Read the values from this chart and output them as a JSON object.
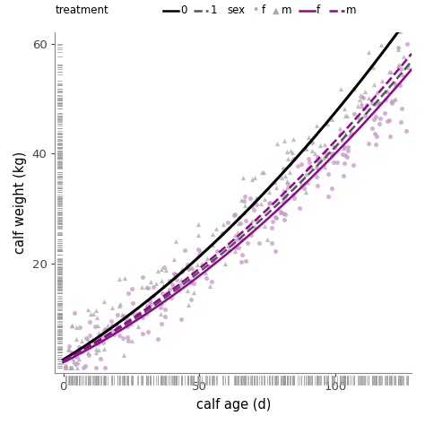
{
  "xlabel": "calf age (d)",
  "ylabel": "calf weight (kg)",
  "xlim": [
    -3,
    128
  ],
  "ylim": [
    0,
    62
  ],
  "yticks": [
    20,
    40,
    60
  ],
  "xticks": [
    0,
    50,
    100
  ],
  "bg_color": "#ffffff",
  "panel_bg": "#ffffff",
  "seed": 42,
  "n_points": 200,
  "color_f": "#c896c8",
  "color_m": "#aaaaaa",
  "line_black": "#000000",
  "line_purple": "#990099",
  "line_gray_dashed": "#555555"
}
